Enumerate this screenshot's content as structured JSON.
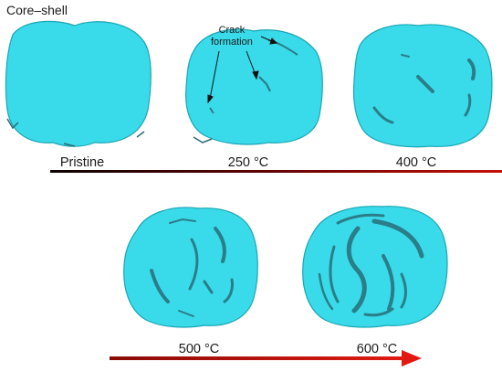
{
  "figure": {
    "title": "Core–shell",
    "annotation": {
      "line1": "Crack",
      "line2": "formation"
    },
    "samples": [
      {
        "label": "Pristine"
      },
      {
        "label": "250 °C"
      },
      {
        "label": "400 °C"
      },
      {
        "label": "500 °C"
      },
      {
        "label": "600 °C"
      }
    ],
    "colors": {
      "particle_fill": "#39dbea",
      "particle_edge": "#1aa6b4",
      "crack": "#2b7d88",
      "arrow_dark": "#1a0000",
      "arrow_red": "#e01a12"
    }
  }
}
